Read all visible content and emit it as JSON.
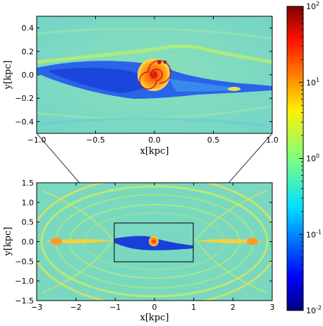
{
  "colors": {
    "background_field": "#7fd8c0",
    "disk_cavity": "#1a3fd8",
    "core": "#ff8a10",
    "core_center": "#d81010",
    "shock_ring": "#e6e84a"
  },
  "colorbar": {
    "scale": "log",
    "range": [
      0.01,
      100
    ],
    "colormap": "jet",
    "ticks": [
      {
        "base": "10",
        "exp": "2",
        "value": 100
      },
      {
        "base": "10",
        "exp": "1",
        "value": 10
      },
      {
        "base": "10",
        "exp": "0",
        "value": 1
      },
      {
        "base": "10",
        "exp": "-1",
        "value": 0.1
      },
      {
        "base": "10",
        "exp": "-2",
        "value": 0.01
      }
    ]
  },
  "chart_data": [
    {
      "type": "heatmap",
      "panel": "zoom",
      "xlabel": "x[kpc]",
      "ylabel": "y[kpc]",
      "xlim": [
        -1.0,
        1.0
      ],
      "ylim": [
        -0.5,
        0.5
      ],
      "xticks": [
        "−1.0",
        "−0.5",
        "0.0",
        "0.5",
        "1.0"
      ],
      "xtick_values": [
        -1.0,
        -0.5,
        0.0,
        0.5,
        1.0
      ],
      "yticks": [
        "0.4",
        "0.2",
        "0.0",
        "−0.2",
        "−0.4"
      ],
      "ytick_values": [
        0.4,
        0.2,
        0.0,
        -0.2,
        -0.4
      ]
    },
    {
      "type": "heatmap",
      "panel": "full",
      "xlabel": "x[kpc]",
      "ylabel": "y[kpc]",
      "xlim": [
        -3,
        3
      ],
      "ylim": [
        -1.5,
        1.5
      ],
      "xticks": [
        "−3",
        "−2",
        "−1",
        "0",
        "1",
        "2",
        "3"
      ],
      "xtick_values": [
        -3,
        -2,
        -1,
        0,
        1,
        2,
        3
      ],
      "yticks": [
        "1.5",
        "1.0",
        "0.5",
        "0.0",
        "−0.5",
        "−1.0",
        "−1.5"
      ],
      "ytick_values": [
        1.5,
        1.0,
        0.5,
        0.0,
        -0.5,
        -1.0,
        -1.5
      ],
      "inset_region": {
        "x": [
          -1,
          1
        ],
        "y": [
          -0.5,
          0.5
        ]
      }
    }
  ]
}
